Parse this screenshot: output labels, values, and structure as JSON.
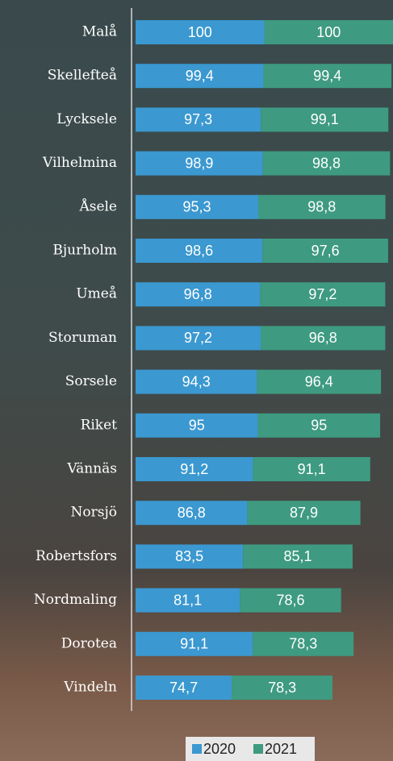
{
  "chart_data": {
    "type": "stacked-bar-horizontal",
    "categories": [
      "Malå",
      "Skellefteå",
      "Lycksele",
      "Vilhelmina",
      "Åsele",
      "Bjurholm",
      "Umeå",
      "Storuman",
      "Sorsele",
      "Riket",
      "Vännäs",
      "Norsjö",
      "Robertsfors",
      "Nordmaling",
      "Dorotea",
      "Vindeln"
    ],
    "series": [
      {
        "name": "2020",
        "color": "#3b98d0",
        "values": [
          100,
          99.4,
          97.3,
          98.9,
          95.3,
          98.6,
          96.8,
          97.2,
          94.3,
          95,
          91.2,
          86.8,
          83.5,
          81.1,
          91.1,
          74.7
        ],
        "value_labels": [
          "100",
          "99,4",
          "97,3",
          "98,9",
          "95,3",
          "98,6",
          "96,8",
          "97,2",
          "94,3",
          "95",
          "91,2",
          "86,8",
          "83,5",
          "81,1",
          "91,1",
          "74,7"
        ]
      },
      {
        "name": "2021",
        "color": "#3e9a80",
        "values": [
          100,
          99.4,
          99.1,
          98.8,
          98.8,
          97.6,
          97.2,
          96.8,
          96.4,
          95,
          91.1,
          87.9,
          85.1,
          78.6,
          78.3,
          78.3
        ],
        "value_labels": [
          "100",
          "99,4",
          "99,1",
          "98,8",
          "98,8",
          "97,6",
          "97,2",
          "96,8",
          "96,4",
          "95",
          "91,1",
          "87,9",
          "85,1",
          "78,6",
          "78,3",
          "78,3"
        ]
      }
    ],
    "xlim": [
      0,
      200
    ]
  }
}
